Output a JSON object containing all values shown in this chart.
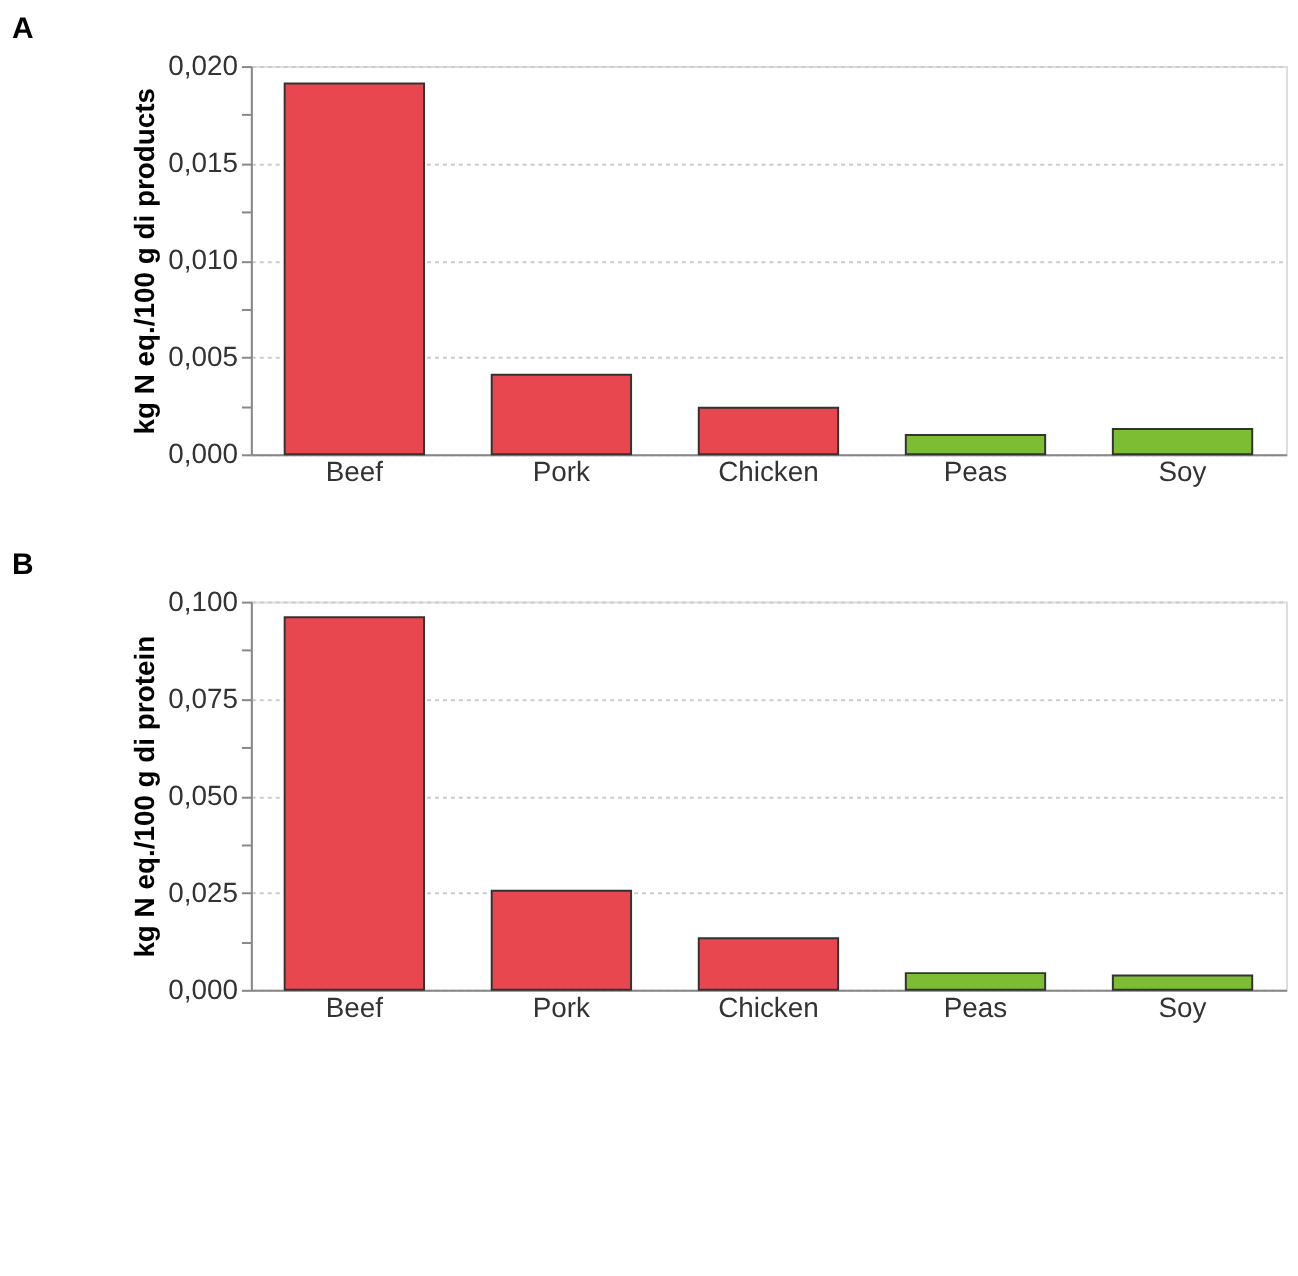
{
  "chart_data": [
    {
      "type": "bar",
      "title": "A",
      "ylabel": "kg N eq./100 g di products",
      "categories": [
        "Beef",
        "Pork",
        "Chicken",
        "Peas",
        "Soy"
      ],
      "values": [
        0.0191,
        0.0041,
        0.0024,
        0.001,
        0.0013
      ],
      "colors": [
        "#e8474f",
        "#e8474f",
        "#e8474f",
        "#7dbd34",
        "#7dbd34"
      ],
      "ylim": [
        0,
        0.02
      ],
      "yticks": [
        {
          "value": 0,
          "label": "0,000"
        },
        {
          "value": 0.0025,
          "label": null
        },
        {
          "value": 0.005,
          "label": "0,005"
        },
        {
          "value": 0.0075,
          "label": null
        },
        {
          "value": 0.01,
          "label": "0,010"
        },
        {
          "value": 0.0125,
          "label": null
        },
        {
          "value": 0.015,
          "label": "0,015"
        },
        {
          "value": 0.0175,
          "label": null
        },
        {
          "value": 0.02,
          "label": "0,020"
        }
      ],
      "grid": "y"
    },
    {
      "type": "bar",
      "title": "B",
      "ylabel": "kg N eq./100 g di protein",
      "categories": [
        "Beef",
        "Pork",
        "Chicken",
        "Peas",
        "Soy"
      ],
      "values": [
        0.096,
        0.0255,
        0.0133,
        0.0043,
        0.0037
      ],
      "colors": [
        "#e8474f",
        "#e8474f",
        "#e8474f",
        "#7dbd34",
        "#7dbd34"
      ],
      "ylim": [
        0,
        0.1
      ],
      "yticks": [
        {
          "value": 0,
          "label": "0,000"
        },
        {
          "value": 0.0125,
          "label": null
        },
        {
          "value": 0.025,
          "label": "0,025"
        },
        {
          "value": 0.0375,
          "label": null
        },
        {
          "value": 0.05,
          "label": "0,050"
        },
        {
          "value": 0.0625,
          "label": null
        },
        {
          "value": 0.075,
          "label": "0,075"
        },
        {
          "value": 0.0875,
          "label": null
        },
        {
          "value": 0.1,
          "label": "0,100"
        }
      ],
      "grid": "y"
    }
  ]
}
